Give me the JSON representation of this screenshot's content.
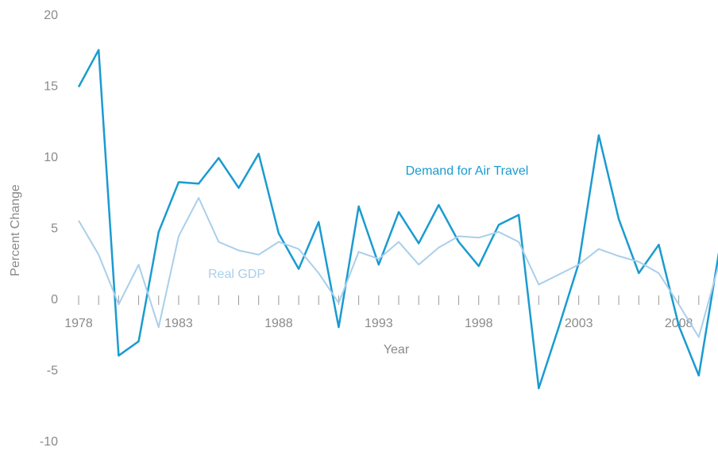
{
  "chart_data": {
    "type": "line",
    "x_label": "Year",
    "y_label": "Percent Change",
    "x": [
      1978,
      1979,
      1980,
      1981,
      1982,
      1983,
      1984,
      1985,
      1986,
      1987,
      1988,
      1989,
      1990,
      1991,
      1992,
      1993,
      1994,
      1995,
      1996,
      1997,
      1998,
      1999,
      2000,
      2001,
      2002,
      2003,
      2004,
      2005,
      2006,
      2007,
      2008,
      2009,
      2010
    ],
    "series": [
      {
        "name": "Demand for Air Travel",
        "color": "#1a9bd0",
        "values": [
          15,
          17.6,
          -3.9,
          -2.9,
          4.8,
          8.3,
          8.2,
          10.0,
          7.9,
          10.3,
          4.7,
          2.2,
          5.5,
          -1.9,
          6.6,
          2.5,
          6.2,
          4.0,
          6.7,
          4.1,
          2.4,
          5.3,
          6.0,
          -6.2,
          -1.9,
          2.6,
          11.6,
          5.7,
          1.9,
          3.9,
          -1.8,
          -5.3,
          3.3
        ]
      },
      {
        "name": "Real GDP",
        "color": "#a9cfea",
        "values": [
          5.6,
          3.2,
          -0.3,
          2.5,
          -1.9,
          4.5,
          7.2,
          4.1,
          3.5,
          3.2,
          4.1,
          3.6,
          1.9,
          -0.2,
          3.4,
          2.9,
          4.1,
          2.5,
          3.7,
          4.5,
          4.4,
          4.8,
          4.1,
          1.1,
          1.8,
          2.5,
          3.6,
          3.1,
          2.7,
          1.9,
          -0.3,
          -2.6,
          2.5
        ]
      }
    ],
    "xlim": [
      1978,
      2010
    ],
    "xticks": [
      1978,
      1983,
      1988,
      1993,
      1998,
      2003,
      2008
    ],
    "ylim": [
      -10,
      20
    ],
    "yticks": [
      -10,
      -5,
      0,
      5,
      10,
      15,
      20
    ]
  }
}
